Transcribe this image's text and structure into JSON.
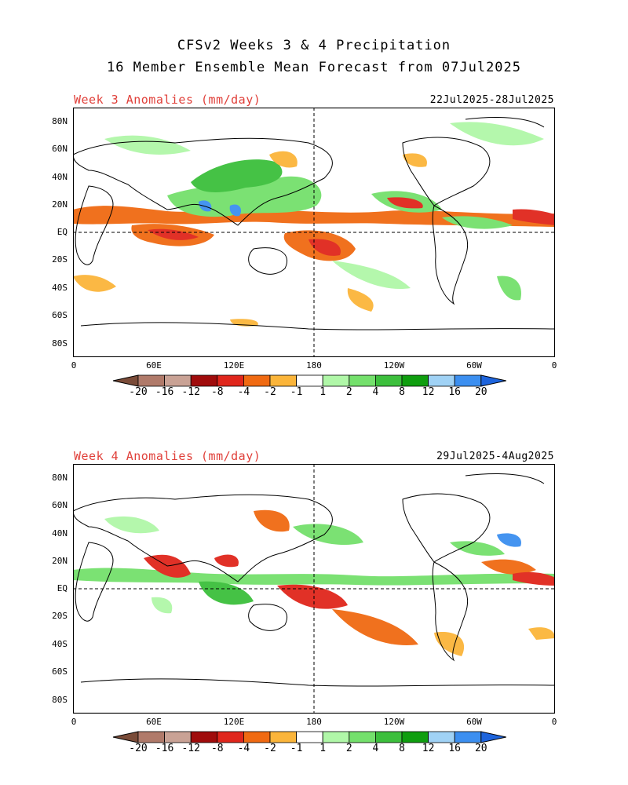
{
  "figure": {
    "title_line1": "CFSv2 Weeks 3 & 4 Precipitation",
    "title_line2": "16 Member Ensemble Mean Forecast from 07Jul2025"
  },
  "panels": [
    {
      "label": "Week 3 Anomalies (mm/day)",
      "dates": "22Jul2025-28Jul2025"
    },
    {
      "label": "Week 4 Anomalies (mm/day)",
      "dates": "29Jul2025-4Aug2025"
    }
  ],
  "lat_labels": [
    "80N",
    "60N",
    "40N",
    "20N",
    "EQ",
    "20S",
    "40S",
    "60S",
    "80S"
  ],
  "lon_labels": [
    "0",
    "60E",
    "120E",
    "180",
    "120W",
    "60W",
    "0"
  ],
  "colorbar": {
    "labels": [
      "-20",
      "-16",
      "-12",
      "-8",
      "-4",
      "-2",
      "-1",
      "1",
      "2",
      "4",
      "8",
      "12",
      "16",
      "20"
    ],
    "colors": [
      "#7a4b38",
      "#b07a6a",
      "#c9a295",
      "#a00c0c",
      "#e0261c",
      "#f06a12",
      "#fbb53a",
      "#ffffff",
      "#b0f7a8",
      "#74e06c",
      "#3cbf3c",
      "#0f9e0f",
      "#a0d2f5",
      "#3c8ff0",
      "#1e64dc"
    ]
  },
  "colors": {
    "red_anom": "#e0261c",
    "orange_anom": "#f06a12",
    "yellow_anom": "#fbb53a",
    "lightgreen_anom": "#b0f7a8",
    "green_anom": "#74e06c",
    "darkgreen_anom": "#3cbf3c",
    "blue_anom": "#3c8ff0"
  }
}
